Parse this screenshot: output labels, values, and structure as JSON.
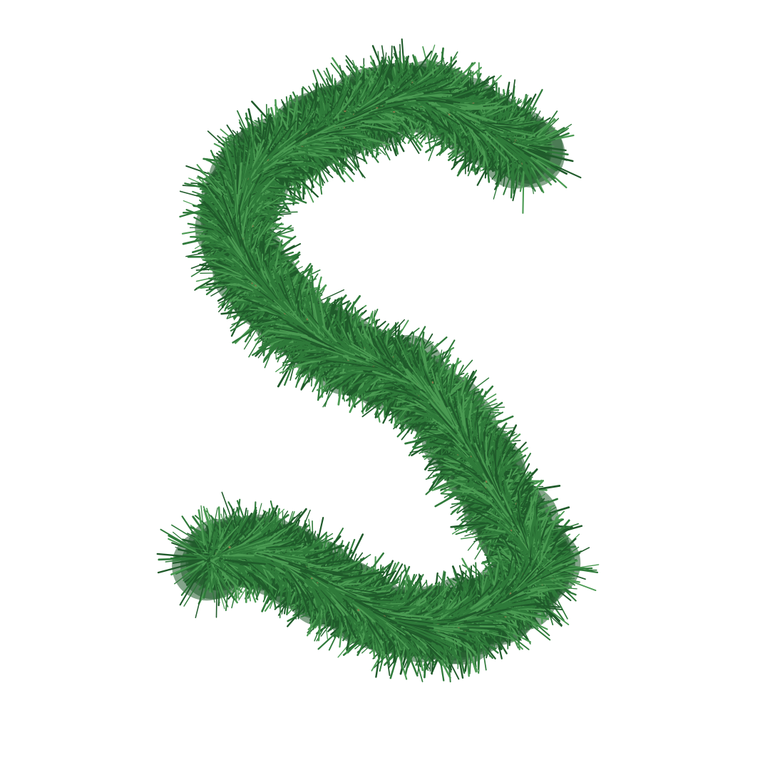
{
  "image": {
    "subject": "garland-photo",
    "colors": {
      "background": "#ffffff",
      "needle_dark": "#1f5a2a",
      "needle_mid": "#2f7a3a",
      "needle_light": "#4a9a52",
      "branch_tan": "#8a7a4a"
    }
  }
}
